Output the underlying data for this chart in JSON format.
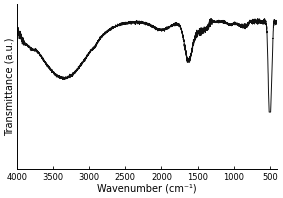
{
  "xlabel": "Wavenumber (cm⁻¹)",
  "ylabel": "Transmittance (a.u.)",
  "xlim": [
    4000,
    400
  ],
  "x_ticks": [
    4000,
    3500,
    3000,
    2500,
    2000,
    1500,
    1000,
    500
  ],
  "line_color": "#111111",
  "line_width": 0.7,
  "background_color": "#ffffff",
  "figsize": [
    2.83,
    1.98
  ],
  "dpi": 100
}
